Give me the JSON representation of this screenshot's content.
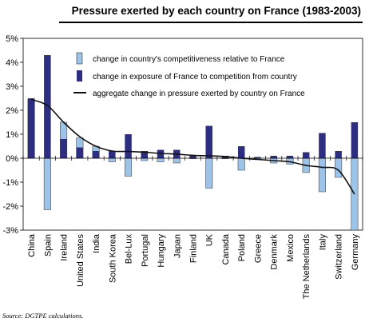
{
  "title": "Pressure exerted by each country on France (1983-2003)",
  "source": "Source: DGTPE calculations.",
  "chart_data": {
    "type": "bar",
    "title": "Pressure exerted by each country on France (1983-2003)",
    "xlabel": "",
    "ylabel": "",
    "ylim": [
      -3,
      5
    ],
    "ytick_labels": [
      "5%",
      "4%",
      "3%",
      "2%",
      "1%",
      "0%",
      "-1%",
      "-2%",
      "-3%"
    ],
    "grid": false,
    "legend_position": "top-right",
    "categories": [
      "China",
      "Spain",
      "Ireland",
      "United States",
      "India",
      "South Korea",
      "Bel-Lux",
      "Portugal",
      "Hungary",
      "Japan",
      "Finland",
      "UK",
      "Canada",
      "Poland",
      "Greece",
      "Denmark",
      "Mexico",
      "The Netherlands",
      "Italy",
      "Switzerland",
      "Germany"
    ],
    "series": [
      {
        "name": "change in country's competitiveness relative to France",
        "kind": "bar",
        "color": "#9dc3e6",
        "values": [
          2.45,
          -2.15,
          1.5,
          0.85,
          0.5,
          -0.15,
          -0.75,
          -0.1,
          -0.15,
          -0.2,
          0.0,
          -1.25,
          0.0,
          -0.5,
          -0.05,
          -0.2,
          -0.25,
          -0.6,
          -1.4,
          -0.8,
          -3.0
        ]
      },
      {
        "name": "change in exposure of France to competition from country",
        "kind": "bar",
        "color": "#2e2e80",
        "values": [
          2.5,
          4.3,
          0.8,
          0.45,
          0.3,
          0.3,
          1.0,
          0.3,
          0.35,
          0.35,
          0.1,
          1.35,
          0.1,
          0.5,
          0.05,
          0.1,
          0.1,
          0.25,
          1.05,
          0.3,
          1.5
        ]
      },
      {
        "name": "aggregate change in pressure exerted by country on France",
        "kind": "line",
        "color": "#111111",
        "values": [
          2.45,
          2.2,
          1.5,
          0.9,
          0.5,
          0.3,
          0.28,
          0.25,
          0.2,
          0.17,
          0.12,
          0.1,
          0.07,
          0.0,
          -0.05,
          -0.1,
          -0.15,
          -0.3,
          -0.38,
          -0.5,
          -1.5
        ]
      }
    ]
  }
}
